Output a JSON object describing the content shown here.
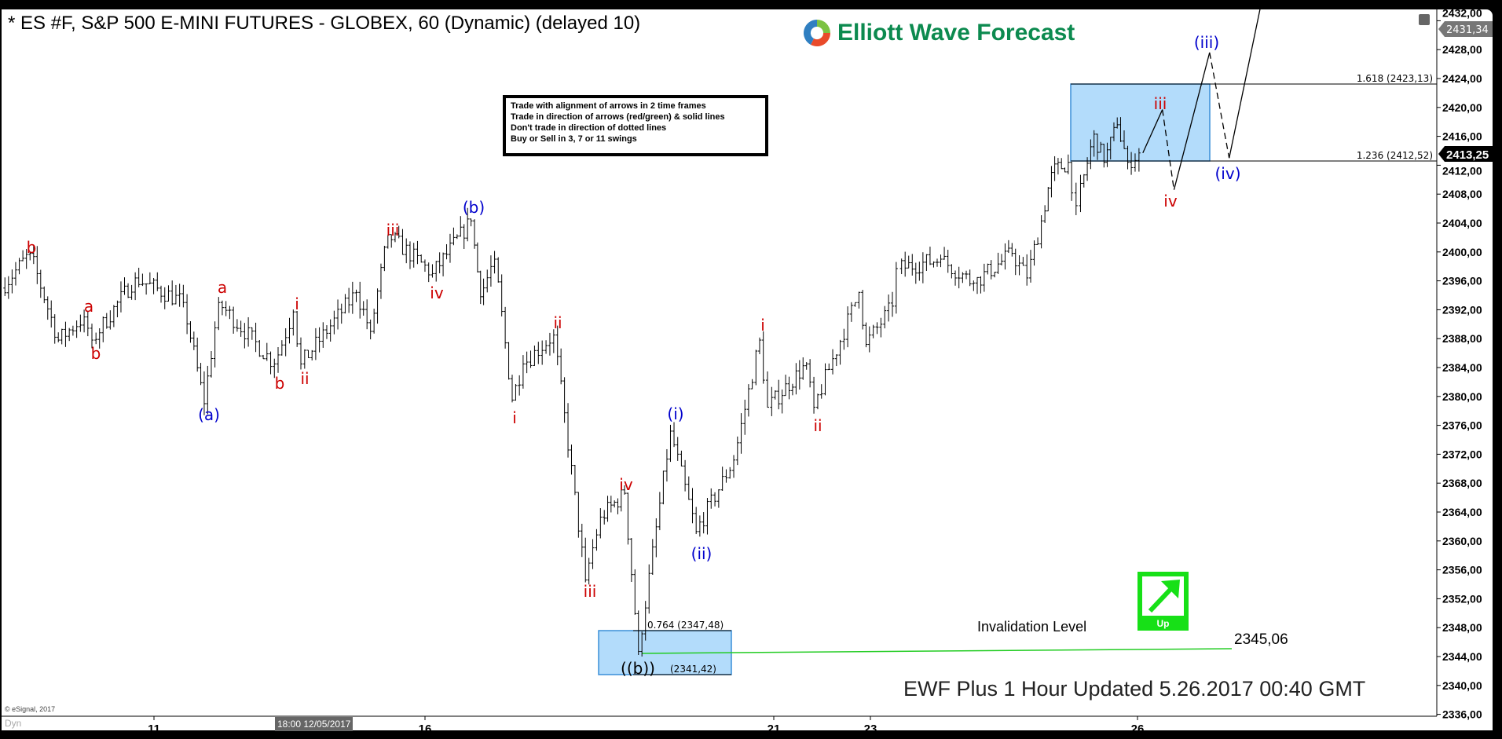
{
  "header": {
    "title": "* ES #F, S&P 500 E-MINI FUTURES - GLOBEX, 60 (Dynamic) (delayed 10)",
    "logo_text": "Elliott Wave Forecast"
  },
  "rules": [
    "Trade with alignment of arrows in 2 time frames",
    "Trade in direction of arrows (red/green) & solid lines",
    "Don't trade in direction of dotted lines",
    "Buy or Sell in 3, 7 or 11 swings"
  ],
  "footer": {
    "updated": "EWF Plus 1 Hour Updated 5.26.2017 00:40 GMT",
    "copyright": "© eSignal, 2017",
    "dyn": "Dyn",
    "cursor_date": "18:00 12/05/2017"
  },
  "invalidation": {
    "label": "Invalidation Level",
    "value": "2345,06",
    "color": "#22cc22"
  },
  "signal": {
    "label": "Up",
    "icon": "arrow-up-right-icon",
    "color": "#17e017"
  },
  "fib": {
    "top_1618": "1.618 (2423,13)",
    "top_1236": "1.236 (2412,52)",
    "bottom_0764": "0.764 (2347,48)",
    "bottom_extreme": "(2341,42)"
  },
  "price_markers": {
    "high": "2431,34",
    "last": "2413,25"
  },
  "wave_labels": {
    "b1": "b",
    "a1": "a",
    "b2": "b",
    "A": "(a)",
    "a2": "a",
    "b3": "b",
    "i1": "i",
    "ii1": "ii",
    "iii1": "iii",
    "iv1": "iv",
    "B": "(b)",
    "i2": "i",
    "ii2": "ii",
    "iii2": "iii",
    "iv2": "iv",
    "BB": "((b))",
    "I": "(i)",
    "II": "(ii)",
    "i3": "i",
    "ii3": "ii",
    "iii3": "iii",
    "iv3": "iv",
    "III": "(iii)",
    "IV": "(iv)"
  },
  "colors": {
    "wave_red": "#cc0000",
    "wave_blue": "#0000cc",
    "target_box": "#b3dcfb",
    "logo_green": "#0c8a4f"
  },
  "chart_data": {
    "type": "ohlc",
    "title": "* ES #F, S&P 500 E-MINI FUTURES - GLOBEX, 60 (Dynamic) (delayed 10)",
    "y_ticks": [
      "2336,00",
      "2340,00",
      "2344,00",
      "2348,00",
      "2352,00",
      "2356,00",
      "2360,00",
      "2364,00",
      "2368,00",
      "2372,00",
      "2376,00",
      "2380,00",
      "2384,00",
      "2388,00",
      "2392,00",
      "2396,00",
      "2400,00",
      "2404,00",
      "2408,00",
      "2412,00",
      "2416,00",
      "2420,00",
      "2424,00",
      "2428,00",
      "2432,00"
    ],
    "ylim": [
      2336,
      2432
    ],
    "x_ticks": [
      "11",
      "16",
      "21",
      "23",
      "26"
    ],
    "x_unit": "day of May 2017",
    "swings": [
      [
        8.25,
        2395.0
      ],
      [
        8.78,
        2399.8
      ],
      [
        9.3,
        2387.8
      ],
      [
        9.78,
        2391.0
      ],
      [
        9.93,
        2387.8
      ],
      [
        10.72,
        2396.4
      ],
      [
        11.61,
        2393.0
      ],
      [
        11.99,
        2379.0
      ],
      [
        12.26,
        2393.0
      ],
      [
        13.29,
        2384.5
      ],
      [
        13.64,
        2391.7
      ],
      [
        13.78,
        2384.5
      ],
      [
        14.8,
        2394.4
      ],
      [
        15.06,
        2389.0
      ],
      [
        15.38,
        2402.4
      ],
      [
        16.16,
        2397.0
      ],
      [
        16.71,
        2404.3
      ],
      [
        16.84,
        2393.8
      ],
      [
        17.05,
        2399.0
      ],
      [
        17.3,
        2379.5
      ],
      [
        17.46,
        2384.5
      ],
      [
        17.9,
        2388.5
      ],
      [
        18.35,
        2354.6
      ],
      [
        18.57,
        2363.3
      ],
      [
        18.91,
        2366.6
      ],
      [
        19.11,
        2344.7
      ],
      [
        19.57,
        2375.2
      ],
      [
        19.94,
        2361.3
      ],
      [
        20.48,
        2371.2
      ],
      [
        20.85,
        2387.8
      ],
      [
        20.97,
        2378.5
      ],
      [
        21.75,
        2384.5
      ],
      [
        21.91,
        2378.5
      ],
      [
        22.84,
        2394.4
      ],
      [
        22.98,
        2387.2
      ],
      [
        23.29,
        2392.5
      ],
      [
        23.35,
        2397.7
      ],
      [
        23.83,
        2399.0
      ],
      [
        24.2,
        2395.7
      ],
      [
        24.63,
        2399.8
      ],
      [
        24.8,
        2396.4
      ],
      [
        24.96,
        2404.3
      ],
      [
        25.07,
        2411.0
      ],
      [
        25.26,
        2412.4
      ],
      [
        25.36,
        2406.4
      ],
      [
        25.55,
        2416.3
      ],
      [
        25.66,
        2412.4
      ],
      [
        25.81,
        2417.6
      ],
      [
        25.93,
        2412.4
      ],
      [
        26.06,
        2413.7
      ]
    ],
    "projection": [
      [
        26.06,
        2413.7
      ],
      [
        26.28,
        2419.7
      ],
      [
        26.41,
        2408.6
      ],
      [
        26.81,
        2427.6
      ],
      [
        27.03,
        2413.0
      ],
      [
        27.38,
        2433.8
      ]
    ],
    "projection_style": [
      "solid",
      "dashed",
      "solid",
      "dashed",
      "solid"
    ],
    "last_price": 2413.25,
    "fib_levels": [
      2423.13,
      2412.52,
      2347.48,
      2341.42
    ],
    "invalidation_level": 2345.06
  }
}
